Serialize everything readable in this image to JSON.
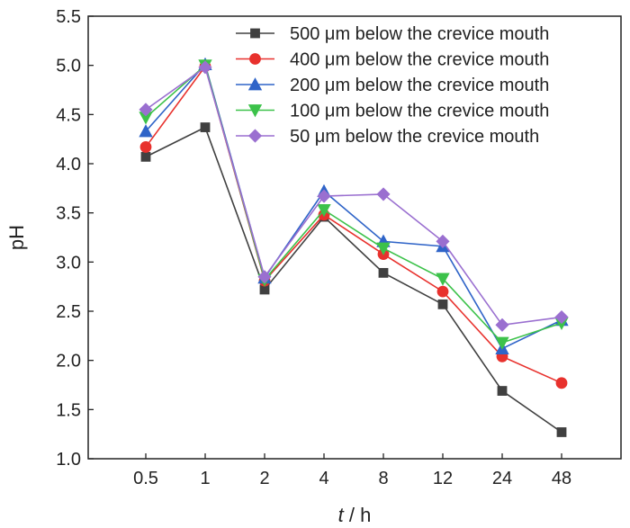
{
  "chart_data": {
    "type": "line",
    "title": "",
    "xlabel_italic": "t",
    "xlabel_rest": " / h",
    "ylabel": "pH",
    "categories": [
      "0.5",
      "1",
      "2",
      "4",
      "8",
      "12",
      "24",
      "48"
    ],
    "ylim": [
      1.0,
      5.5
    ],
    "yticks": [
      "1.0",
      "1.5",
      "2.0",
      "2.5",
      "3.0",
      "3.5",
      "4.0",
      "4.5",
      "5.0",
      "5.5"
    ],
    "grid": false,
    "legend_position": "top-right",
    "series": [
      {
        "name": "500 μm below the crevice mouth",
        "color": "#404040",
        "marker": "square",
        "values": [
          4.07,
          4.37,
          2.72,
          3.46,
          2.89,
          2.57,
          1.69,
          1.27
        ]
      },
      {
        "name": "400 μm below the crevice mouth",
        "color": "#e8312d",
        "marker": "circle",
        "values": [
          4.17,
          4.99,
          2.81,
          3.48,
          3.08,
          2.7,
          2.04,
          1.77
        ]
      },
      {
        "name": "200 μm below the crevice mouth",
        "color": "#2f64c8",
        "marker": "triangle-up",
        "values": [
          4.33,
          5.01,
          2.84,
          3.72,
          3.21,
          3.16,
          2.12,
          2.41
        ]
      },
      {
        "name": "100 μm below the crevice mouth",
        "color": "#3cc24a",
        "marker": "triangle-down",
        "values": [
          4.47,
          5.0,
          2.82,
          3.53,
          3.14,
          2.83,
          2.18,
          2.38
        ]
      },
      {
        "name": "50 μm below the crevice mouth",
        "color": "#9a6fd0",
        "marker": "diamond",
        "values": [
          4.55,
          4.98,
          2.85,
          3.67,
          3.69,
          3.21,
          2.36,
          2.44
        ]
      }
    ]
  }
}
